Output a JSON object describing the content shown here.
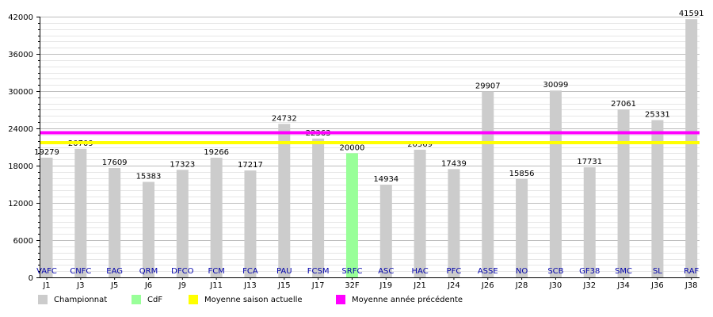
{
  "chart_data": {
    "type": "bar",
    "title": "",
    "xlabel": "",
    "ylabel": "",
    "ylim": [
      0,
      42000
    ],
    "yticks": [
      0,
      6000,
      12000,
      18000,
      24000,
      30000,
      36000,
      42000
    ],
    "grid": true,
    "categories": [
      "J1",
      "J3",
      "J5",
      "J6",
      "J9",
      "J11",
      "J13",
      "J15",
      "J17",
      "32F",
      "J19",
      "J21",
      "J24",
      "J26",
      "J28",
      "J30",
      "J32",
      "J34",
      "J36",
      "J38"
    ],
    "opponents": [
      "VAFC",
      "CNFC",
      "EAG",
      "QRM",
      "DFCO",
      "FCM",
      "FCA",
      "PAU",
      "FCSM",
      "SRFC",
      "ASC",
      "HAC",
      "PFC",
      "ASSE",
      "NO",
      "SCB",
      "GF38",
      "SMC",
      "SL",
      "RAF"
    ],
    "values": [
      19279,
      20709,
      17609,
      15383,
      17323,
      19266,
      17217,
      24732,
      22363,
      20000,
      14934,
      20569,
      17439,
      29907,
      15856,
      30099,
      17731,
      27061,
      25331,
      41591
    ],
    "bar_kinds": [
      "Championnat",
      "Championnat",
      "Championnat",
      "Championnat",
      "Championnat",
      "Championnat",
      "Championnat",
      "Championnat",
      "Championnat",
      "CdF",
      "Championnat",
      "Championnat",
      "Championnat",
      "Championnat",
      "Championnat",
      "Championnat",
      "Championnat",
      "Championnat",
      "Championnat",
      "Championnat"
    ],
    "reference_lines": [
      {
        "name": "Moyenne saison actuelle",
        "value": 21700,
        "color": "#ffff00"
      },
      {
        "name": "Moyenne année précédente",
        "value": 23300,
        "color": "#ff00ff"
      }
    ],
    "legend": [
      {
        "label": "Championnat",
        "color": "#cccccc"
      },
      {
        "label": "CdF",
        "color": "#99ff99"
      },
      {
        "label": "Moyenne saison actuelle",
        "color": "#ffff00"
      },
      {
        "label": "Moyenne année précédente",
        "color": "#ff00ff"
      }
    ],
    "legend_position": "bottom",
    "colors": {
      "Championnat": "#cccccc",
      "CdF": "#99ff99",
      "opponent_text": "#0000aa",
      "grid": "#cccccc"
    }
  }
}
